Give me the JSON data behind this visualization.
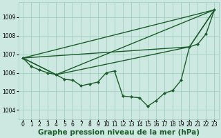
{
  "xlabel": "Graphe pression niveau de la mer (hPa)",
  "bg_color": "#cce8e0",
  "plot_bg_color": "#cce8e0",
  "grid_color": "#99ccbb",
  "line_color": "#1a5c2a",
  "xlim": [
    -0.5,
    23.5
  ],
  "ylim": [
    1003.5,
    1009.8
  ],
  "yticks": [
    1004,
    1005,
    1006,
    1007,
    1008,
    1009
  ],
  "xticks": [
    0,
    1,
    2,
    3,
    4,
    5,
    6,
    7,
    8,
    9,
    10,
    11,
    12,
    13,
    14,
    15,
    16,
    17,
    18,
    19,
    20,
    21,
    22,
    23
  ],
  "series_main_x": [
    0,
    1,
    2,
    3,
    4,
    5,
    6,
    7,
    8,
    9,
    10,
    11,
    12,
    13,
    14,
    15,
    16,
    17,
    18,
    19,
    20,
    21,
    22,
    23
  ],
  "series_main_y": [
    1006.8,
    1006.35,
    1006.15,
    1006.0,
    1005.9,
    1005.65,
    1005.6,
    1005.3,
    1005.4,
    1005.5,
    1006.0,
    1006.1,
    1004.75,
    1004.7,
    1004.65,
    1004.2,
    1004.5,
    1004.9,
    1005.05,
    1005.6,
    1007.4,
    1007.55,
    1008.1,
    1009.4
  ],
  "line1_x": [
    0,
    23
  ],
  "line1_y": [
    1006.8,
    1009.4
  ],
  "line2_x": [
    0,
    20,
    23
  ],
  "line2_y": [
    1006.8,
    1007.4,
    1009.4
  ],
  "line3_x": [
    0,
    4,
    23
  ],
  "line3_y": [
    1006.8,
    1005.9,
    1009.4
  ],
  "line4_x": [
    0,
    4,
    20,
    23
  ],
  "line4_y": [
    1006.8,
    1005.9,
    1007.4,
    1009.4
  ],
  "marker_size": 2.5,
  "line_width": 1.0,
  "xlabel_fontsize": 7.5,
  "tick_fontsize": 5.5
}
